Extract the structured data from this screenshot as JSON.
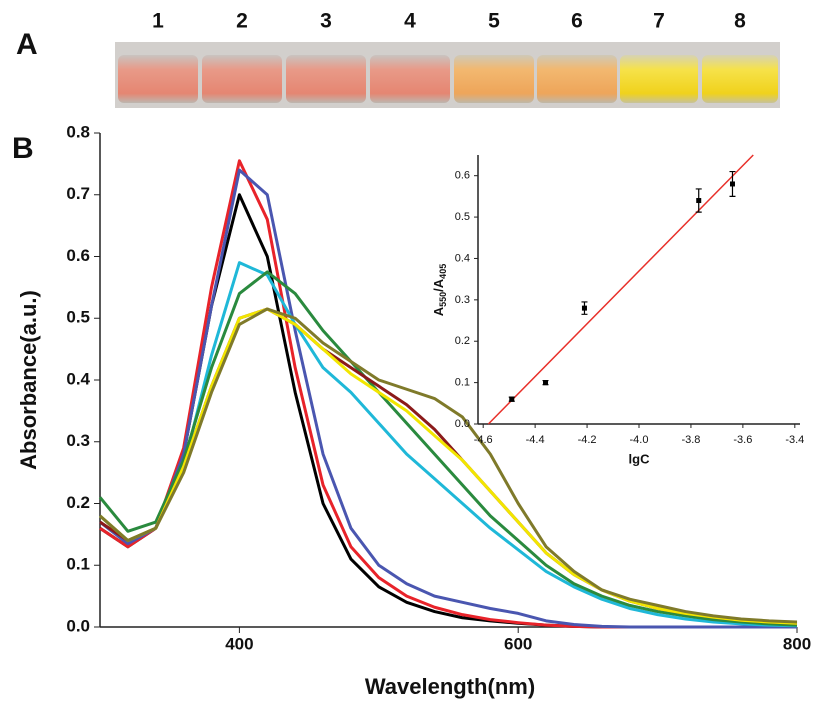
{
  "panel_labels": [
    "A",
    "B"
  ],
  "photo_labels": [
    "1",
    "2",
    "3",
    "4",
    "5",
    "6",
    "7",
    "8"
  ],
  "chart_data": [
    {
      "type": "line",
      "xlabel": "Wavelength(nm)",
      "ylabel": "Absorbance(a.u.)",
      "xlim": [
        300,
        800
      ],
      "xticks": [
        400,
        600,
        800
      ],
      "ylim": [
        0,
        0.8
      ],
      "yticks": [
        {
          "value": 0,
          "label": "0.0"
        },
        0.1,
        0.2,
        0.3,
        0.4,
        0.5,
        0.6,
        0.7,
        0.8
      ],
      "x": [
        300,
        320,
        340,
        360,
        380,
        400,
        420,
        440,
        460,
        480,
        500,
        520,
        540,
        560,
        580,
        600,
        620,
        640,
        660,
        680,
        700,
        720,
        740,
        760,
        780,
        800
      ],
      "series": [
        {
          "color": "#000000",
          "values": [
            0.16,
            0.13,
            0.16,
            0.28,
            0.52,
            0.7,
            0.6,
            0.38,
            0.2,
            0.11,
            0.065,
            0.04,
            0.025,
            0.015,
            0.01,
            0.006,
            0.003,
            0.001,
            0,
            0,
            0,
            0,
            0,
            0,
            0,
            0
          ]
        },
        {
          "color": "#e8232a",
          "values": [
            0.16,
            0.13,
            0.16,
            0.29,
            0.55,
            0.755,
            0.66,
            0.42,
            0.23,
            0.13,
            0.08,
            0.05,
            0.032,
            0.02,
            0.012,
            0.007,
            0.003,
            0.001,
            0,
            0,
            0,
            0,
            0,
            0,
            0,
            0
          ]
        },
        {
          "color": "#4a56b0",
          "values": [
            0.17,
            0.135,
            0.16,
            0.28,
            0.52,
            0.74,
            0.7,
            0.48,
            0.28,
            0.16,
            0.1,
            0.07,
            0.05,
            0.04,
            0.03,
            0.022,
            0.01,
            0.004,
            0.001,
            0,
            0,
            0,
            0,
            0,
            0,
            0
          ]
        },
        {
          "color": "#1fb8d8",
          "values": [
            0.18,
            0.14,
            0.16,
            0.26,
            0.44,
            0.59,
            0.57,
            0.49,
            0.42,
            0.38,
            0.33,
            0.28,
            0.24,
            0.2,
            0.16,
            0.125,
            0.09,
            0.065,
            0.045,
            0.03,
            0.02,
            0.013,
            0.008,
            0.005,
            0.003,
            0.002
          ]
        },
        {
          "color": "#2a8a3e",
          "values": [
            0.21,
            0.155,
            0.17,
            0.27,
            0.42,
            0.54,
            0.575,
            0.54,
            0.48,
            0.43,
            0.38,
            0.33,
            0.28,
            0.23,
            0.18,
            0.14,
            0.1,
            0.07,
            0.05,
            0.035,
            0.025,
            0.018,
            0.012,
            0.008,
            0.005,
            0.003
          ]
        },
        {
          "color": "#8b1a1a",
          "values": [
            0.17,
            0.14,
            0.16,
            0.26,
            0.39,
            0.5,
            0.515,
            0.49,
            0.45,
            0.42,
            0.39,
            0.36,
            0.32,
            0.27,
            0.22,
            0.17,
            0.12,
            0.085,
            0.06,
            0.042,
            0.03,
            0.022,
            0.016,
            0.011,
            0.008,
            0.006
          ]
        },
        {
          "color": "#f2e600",
          "values": [
            0.18,
            0.14,
            0.16,
            0.26,
            0.39,
            0.5,
            0.515,
            0.49,
            0.45,
            0.41,
            0.38,
            0.35,
            0.31,
            0.27,
            0.22,
            0.17,
            0.12,
            0.085,
            0.06,
            0.042,
            0.03,
            0.022,
            0.016,
            0.011,
            0.008,
            0.006
          ]
        },
        {
          "color": "#7f7a2a",
          "values": [
            0.18,
            0.14,
            0.16,
            0.25,
            0.38,
            0.49,
            0.515,
            0.5,
            0.46,
            0.43,
            0.4,
            0.385,
            0.37,
            0.34,
            0.28,
            0.2,
            0.13,
            0.09,
            0.06,
            0.045,
            0.035,
            0.025,
            0.018,
            0.013,
            0.01,
            0.008
          ]
        }
      ]
    },
    {
      "type": "scatter",
      "xlabel": "lgC",
      "ylabel": [
        "A",
        "550",
        "/A",
        "405"
      ],
      "xlim": [
        -4.62,
        -3.38
      ],
      "xticks": [
        -4.6,
        -4.4,
        -4.2,
        {
          "value": -4,
          "label": "-4.0"
        },
        -3.8,
        -3.6,
        -3.4
      ],
      "ylim": [
        0,
        0.65
      ],
      "yticks": [
        {
          "value": 0,
          "label": "0.0"
        },
        0.1,
        0.2,
        0.3,
        0.4,
        0.5,
        0.6
      ],
      "x": [
        -4.49,
        -4.36,
        -4.21,
        -3.77,
        -3.64
      ],
      "values": [
        0.06,
        0.1,
        0.28,
        0.54,
        0.58
      ],
      "errors": [
        0.005,
        0.005,
        0.015,
        0.028,
        0.03
      ],
      "color": "#000000",
      "fit": {
        "x": [
          -4.58,
          -3.56
        ],
        "values": [
          0,
          0.65
        ],
        "color": "#e8302a"
      }
    }
  ]
}
